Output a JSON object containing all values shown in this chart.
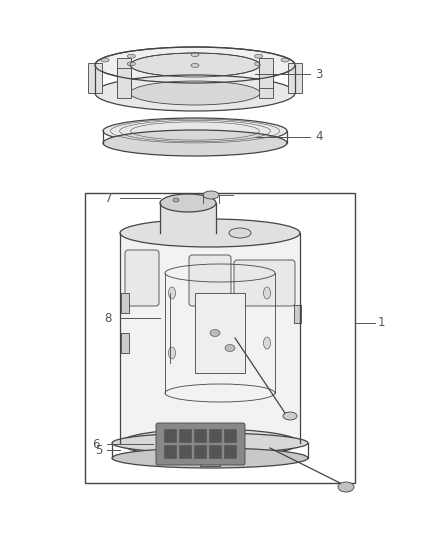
{
  "bg_color": "#ffffff",
  "line_color": "#444444",
  "label_color": "#555555",
  "fig_width": 4.38,
  "fig_height": 5.33,
  "dpi": 100,
  "label_fontsize": 8.5
}
